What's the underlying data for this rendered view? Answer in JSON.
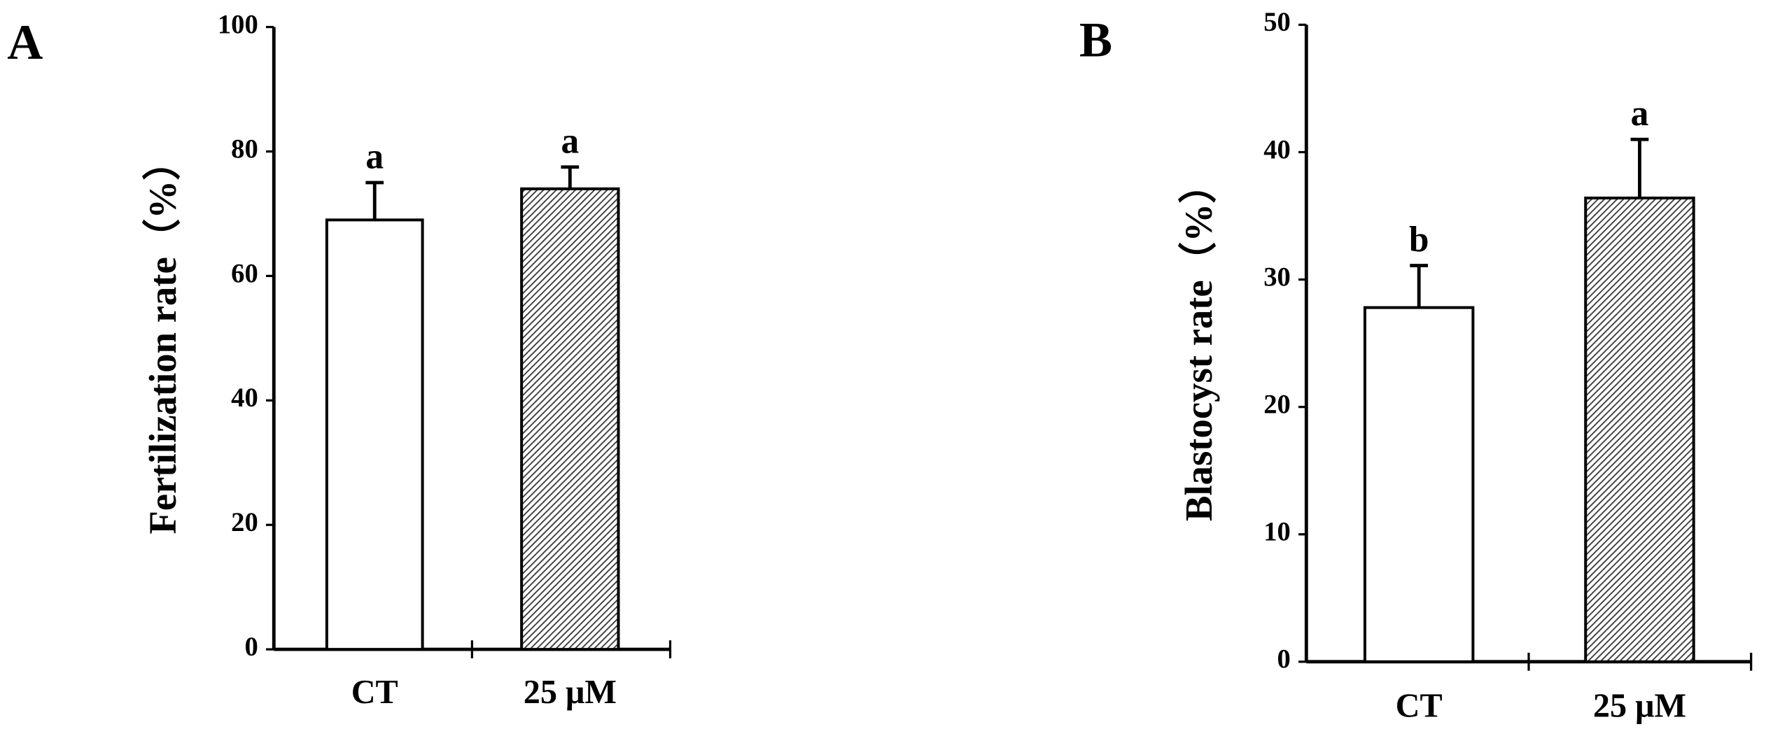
{
  "chart_data": [
    {
      "type": "bar",
      "label": "A",
      "ylabel": "Fertilization rate（%）",
      "categories": [
        "CT",
        "25 μM"
      ],
      "values": [
        69,
        74
      ],
      "errors": [
        6,
        3.5
      ],
      "significance": [
        "a",
        "a"
      ],
      "bar_fills": [
        "#ffffff",
        "hatched"
      ],
      "ylim": [
        0,
        100
      ],
      "yticks": [
        0,
        20,
        40,
        60,
        80,
        100
      ]
    },
    {
      "type": "bar",
      "label": "B",
      "ylabel": "Blastocyst rate（%）",
      "categories": [
        "CT",
        "25 μM"
      ],
      "values": [
        27.8,
        36.4
      ],
      "errors": [
        3.3,
        4.6
      ],
      "significance": [
        "b",
        "a"
      ],
      "bar_fills": [
        "#ffffff",
        "hatched"
      ],
      "ylim": [
        0,
        50
      ],
      "yticks": [
        0,
        10,
        20,
        30,
        40,
        50
      ]
    }
  ]
}
